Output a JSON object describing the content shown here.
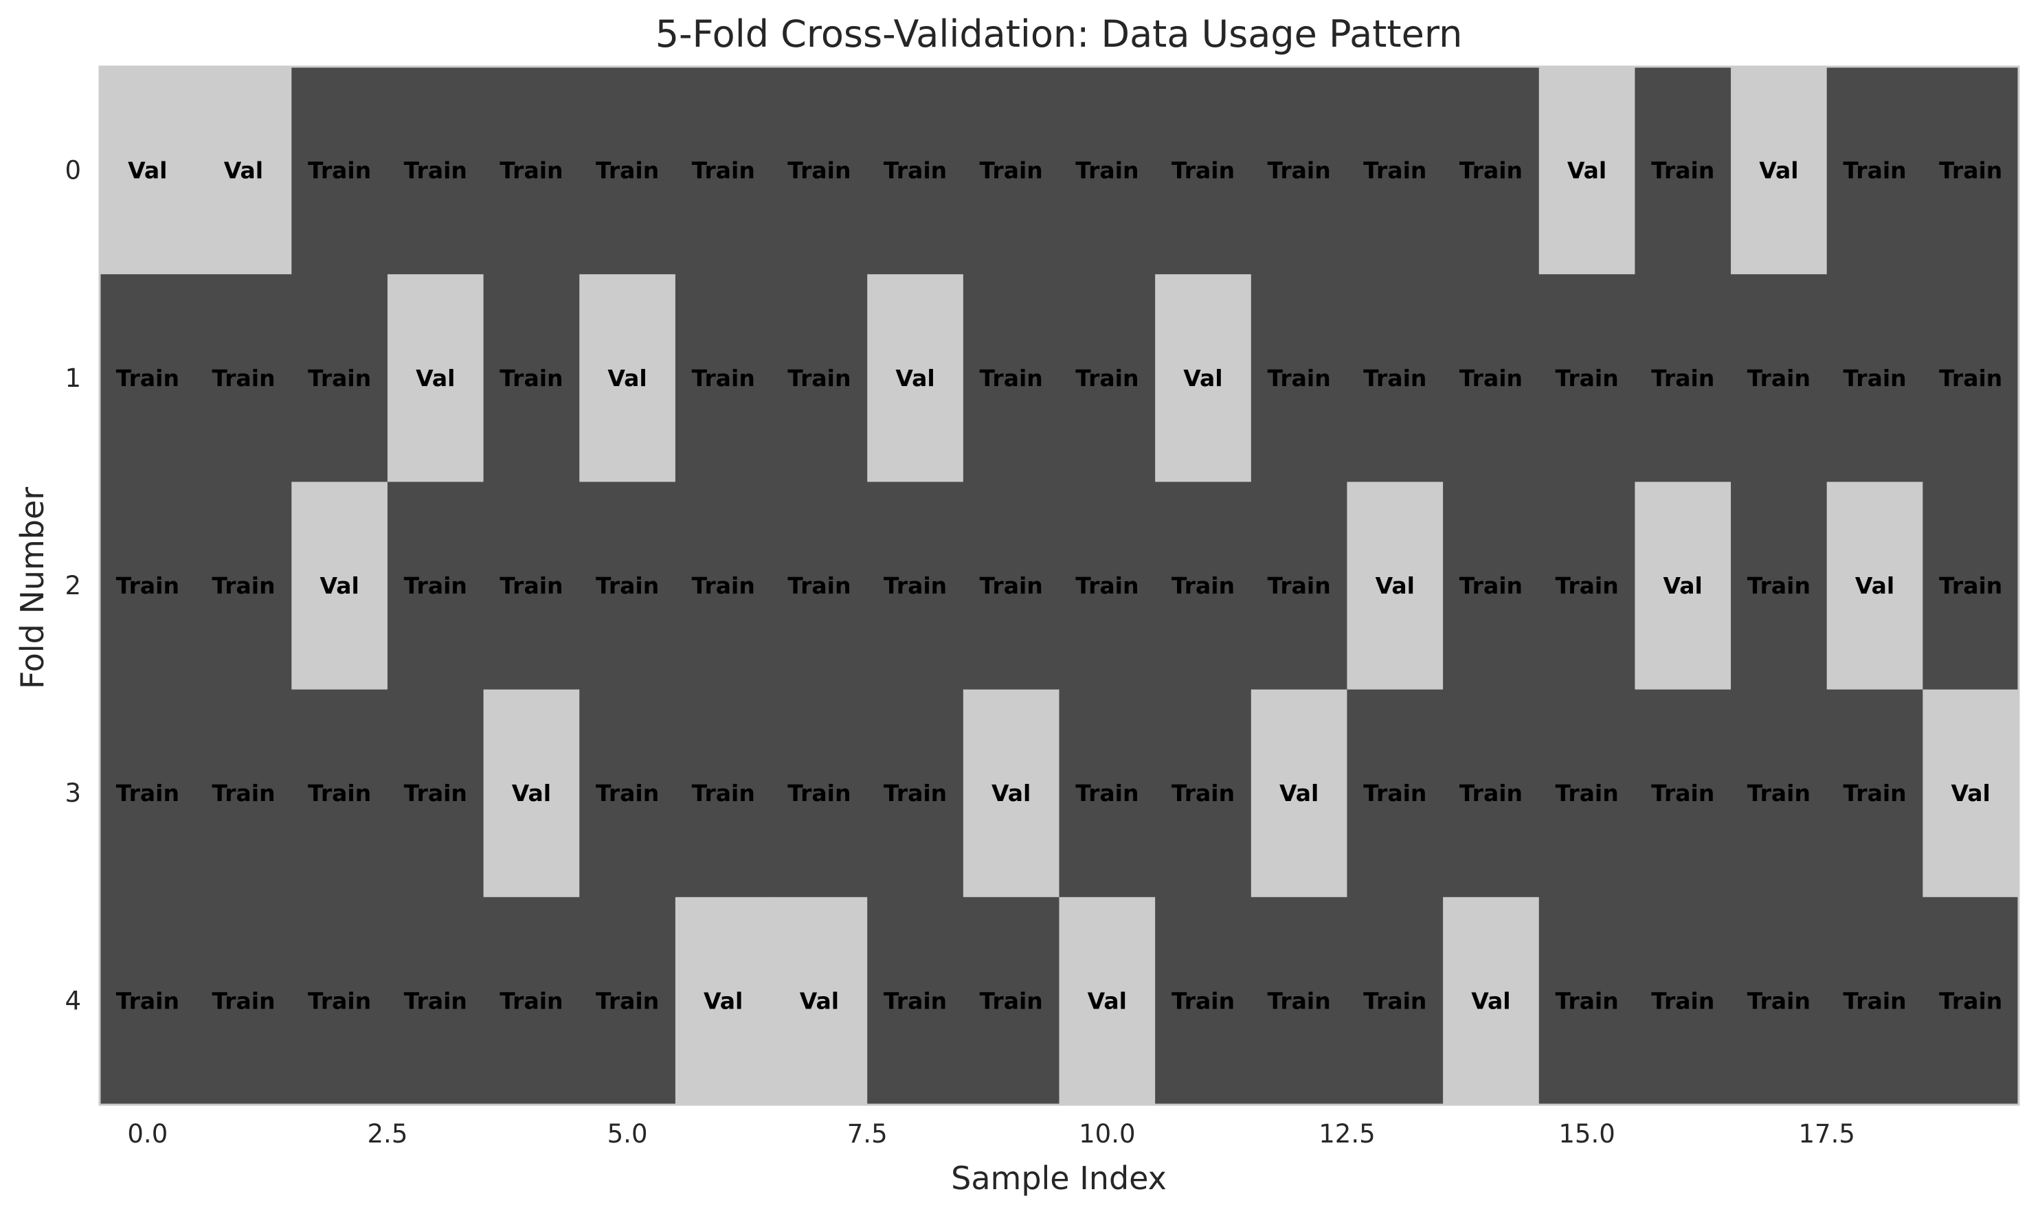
{
  "chart_data": {
    "type": "heatmap",
    "title": "5-Fold Cross-Validation: Data Usage Pattern",
    "xlabel": "Sample Index",
    "ylabel": "Fold Number",
    "x_ticks": [
      "0.0",
      "2.5",
      "5.0",
      "7.5",
      "10.0",
      "12.5",
      "15.0",
      "17.5"
    ],
    "x_tick_values": [
      0,
      2.5,
      5,
      7.5,
      10,
      12.5,
      15,
      17.5
    ],
    "xlim": [
      -0.5,
      19.5
    ],
    "rows": [
      "0",
      "1",
      "2",
      "3",
      "4"
    ],
    "labels": {
      "train": "Train",
      "val": "Val"
    },
    "colors": {
      "train": "#4a4a4a",
      "val": "#cccccc",
      "frame": "#cccccc",
      "text": "#000000"
    },
    "grid": false,
    "matrix": [
      [
        "Val",
        "Val",
        "Train",
        "Train",
        "Train",
        "Train",
        "Train",
        "Train",
        "Train",
        "Train",
        "Train",
        "Train",
        "Train",
        "Train",
        "Train",
        "Val",
        "Train",
        "Val",
        "Train",
        "Train"
      ],
      [
        "Train",
        "Train",
        "Train",
        "Val",
        "Train",
        "Val",
        "Train",
        "Train",
        "Val",
        "Train",
        "Train",
        "Val",
        "Train",
        "Train",
        "Train",
        "Train",
        "Train",
        "Train",
        "Train",
        "Train"
      ],
      [
        "Train",
        "Train",
        "Val",
        "Train",
        "Train",
        "Train",
        "Train",
        "Train",
        "Train",
        "Train",
        "Train",
        "Train",
        "Train",
        "Val",
        "Train",
        "Train",
        "Val",
        "Train",
        "Val",
        "Train"
      ],
      [
        "Train",
        "Train",
        "Train",
        "Train",
        "Val",
        "Train",
        "Train",
        "Train",
        "Train",
        "Val",
        "Train",
        "Train",
        "Val",
        "Train",
        "Train",
        "Train",
        "Train",
        "Train",
        "Train",
        "Val"
      ],
      [
        "Train",
        "Train",
        "Train",
        "Train",
        "Train",
        "Train",
        "Val",
        "Val",
        "Train",
        "Train",
        "Val",
        "Train",
        "Train",
        "Train",
        "Val",
        "Train",
        "Train",
        "Train",
        "Train",
        "Train"
      ]
    ]
  }
}
